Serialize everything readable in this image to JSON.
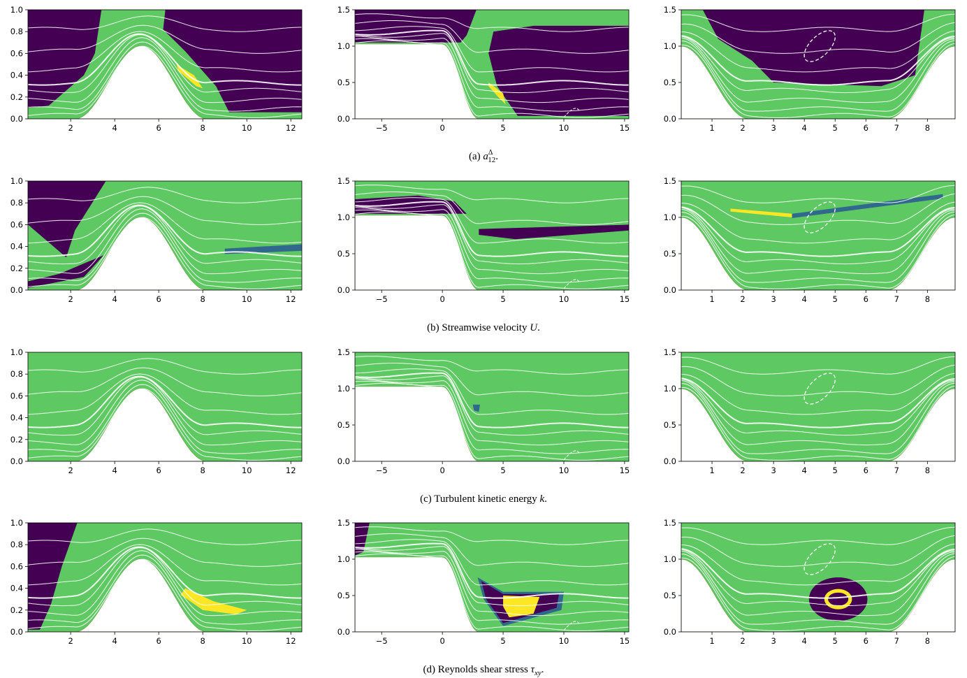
{
  "figure": {
    "columns": [
      {
        "xlim": [
          0.06,
          12.5
        ],
        "ylim": [
          0,
          1
        ],
        "xticks": [
          2,
          4,
          6,
          8,
          10,
          12
        ],
        "yticks": [
          {
            "value": 0,
            "label": "0.0"
          },
          {
            "value": 0.2,
            "label": "0.2"
          },
          {
            "value": 0.4,
            "label": "0.4"
          },
          {
            "value": 0.6,
            "label": "0.6"
          },
          {
            "value": 0.8,
            "label": "0.8"
          },
          {
            "value": 1,
            "label": "1.0"
          }
        ]
      },
      {
        "xlim": [
          -7.2,
          15.35
        ],
        "ylim": [
          0,
          1.5
        ],
        "xticks": [
          {
            "value": -5,
            "label": "−5"
          },
          0,
          5,
          10,
          15
        ],
        "yticks": [
          {
            "value": 0,
            "label": "0.0"
          },
          0.5,
          {
            "value": 1,
            "label": "1.0"
          },
          1.5
        ]
      },
      {
        "xlim": [
          0,
          8.9
        ],
        "ylim": [
          0,
          1.5
        ],
        "xticks": [
          1,
          2,
          3,
          4,
          5,
          6,
          7,
          8
        ],
        "yticks": [
          {
            "value": 0,
            "label": "0.0"
          },
          0.5,
          {
            "value": 1,
            "label": "1.0"
          },
          1.5
        ]
      }
    ],
    "rows": [
      {
        "caption": {
          "label": "(a)",
          "symbol": "a",
          "sup": "Δ",
          "sub": "12",
          "end": "."
        }
      },
      {
        "caption": {
          "label": "(b)",
          "text": "Streamwise velocity",
          "symbol": "U",
          "end": "."
        }
      },
      {
        "caption": {
          "label": "(c)",
          "text": "Turbulent kinetic energy",
          "symbol": "k",
          "end": "."
        }
      },
      {
        "caption": {
          "label": "(d)",
          "text": "Reynolds shear stress",
          "symbol": "τ",
          "sub": "xy",
          "end": "."
        }
      }
    ]
  }
}
